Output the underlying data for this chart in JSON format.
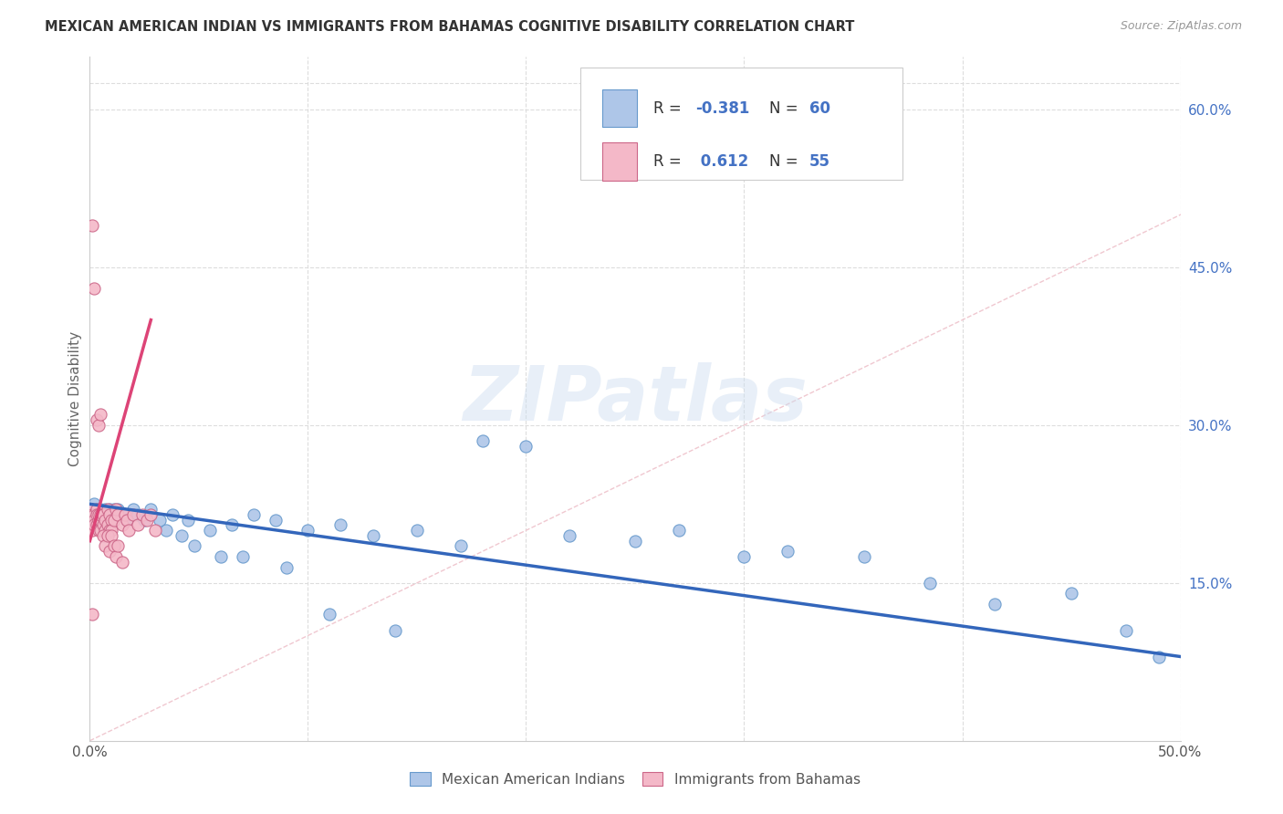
{
  "title": "MEXICAN AMERICAN INDIAN VS IMMIGRANTS FROM BAHAMAS COGNITIVE DISABILITY CORRELATION CHART",
  "source": "Source: ZipAtlas.com",
  "ylabel": "Cognitive Disability",
  "legend_label1": "Mexican American Indians",
  "legend_label2": "Immigrants from Bahamas",
  "R_blue": -0.381,
  "N_blue": 60,
  "R_pink": 0.612,
  "N_pink": 55,
  "color_blue_fill": "#aec6e8",
  "color_blue_edge": "#6699cc",
  "color_blue_line": "#3366bb",
  "color_pink_fill": "#f4b8c8",
  "color_pink_edge": "#cc6688",
  "color_pink_line": "#dd4477",
  "color_diag": "#f0c8d0",
  "right_ytick_vals": [
    0.15,
    0.3,
    0.45,
    0.6
  ],
  "right_ytick_labels": [
    "15.0%",
    "30.0%",
    "45.0%",
    "60.0%"
  ],
  "xlim": [
    0.0,
    0.5
  ],
  "ylim": [
    0.0,
    0.65
  ],
  "watermark": "ZIPatlas",
  "background_color": "#ffffff",
  "grid_color": "#dddddd",
  "legend_text_color": "#4472c4",
  "blue_x": [
    0.001,
    0.002,
    0.002,
    0.003,
    0.003,
    0.004,
    0.004,
    0.005,
    0.005,
    0.006,
    0.006,
    0.007,
    0.007,
    0.008,
    0.008,
    0.009,
    0.01,
    0.01,
    0.011,
    0.012,
    0.013,
    0.015,
    0.017,
    0.02,
    0.022,
    0.025,
    0.028,
    0.032,
    0.038,
    0.045,
    0.055,
    0.065,
    0.075,
    0.085,
    0.1,
    0.115,
    0.13,
    0.15,
    0.17,
    0.2,
    0.22,
    0.25,
    0.27,
    0.3,
    0.32,
    0.355,
    0.385,
    0.415,
    0.45,
    0.475,
    0.49,
    0.035,
    0.042,
    0.048,
    0.06,
    0.07,
    0.09,
    0.11,
    0.14,
    0.18
  ],
  "blue_y": [
    0.22,
    0.215,
    0.225,
    0.21,
    0.22,
    0.215,
    0.205,
    0.22,
    0.21,
    0.215,
    0.205,
    0.22,
    0.21,
    0.215,
    0.205,
    0.22,
    0.215,
    0.21,
    0.22,
    0.215,
    0.22,
    0.215,
    0.21,
    0.22,
    0.215,
    0.21,
    0.22,
    0.21,
    0.215,
    0.21,
    0.2,
    0.205,
    0.215,
    0.21,
    0.2,
    0.205,
    0.195,
    0.2,
    0.185,
    0.28,
    0.195,
    0.19,
    0.2,
    0.175,
    0.18,
    0.175,
    0.15,
    0.13,
    0.14,
    0.105,
    0.08,
    0.2,
    0.195,
    0.185,
    0.175,
    0.175,
    0.165,
    0.12,
    0.105,
    0.285
  ],
  "pink_x": [
    0.001,
    0.001,
    0.001,
    0.001,
    0.001,
    0.002,
    0.002,
    0.002,
    0.003,
    0.003,
    0.003,
    0.004,
    0.004,
    0.004,
    0.005,
    0.005,
    0.005,
    0.006,
    0.006,
    0.007,
    0.007,
    0.008,
    0.008,
    0.009,
    0.009,
    0.01,
    0.01,
    0.011,
    0.012,
    0.013,
    0.015,
    0.016,
    0.017,
    0.018,
    0.02,
    0.022,
    0.024,
    0.026,
    0.028,
    0.03,
    0.003,
    0.004,
    0.005,
    0.006,
    0.007,
    0.008,
    0.009,
    0.01,
    0.011,
    0.012,
    0.013,
    0.015,
    0.001,
    0.001,
    0.002
  ],
  "pink_y": [
    0.22,
    0.215,
    0.21,
    0.205,
    0.2,
    0.215,
    0.21,
    0.205,
    0.22,
    0.215,
    0.205,
    0.21,
    0.2,
    0.215,
    0.21,
    0.2,
    0.215,
    0.205,
    0.215,
    0.21,
    0.2,
    0.22,
    0.205,
    0.215,
    0.2,
    0.21,
    0.2,
    0.21,
    0.22,
    0.215,
    0.205,
    0.215,
    0.21,
    0.2,
    0.215,
    0.205,
    0.215,
    0.21,
    0.215,
    0.2,
    0.305,
    0.3,
    0.31,
    0.195,
    0.185,
    0.195,
    0.18,
    0.195,
    0.185,
    0.175,
    0.185,
    0.17,
    0.49,
    0.12,
    0.43
  ]
}
